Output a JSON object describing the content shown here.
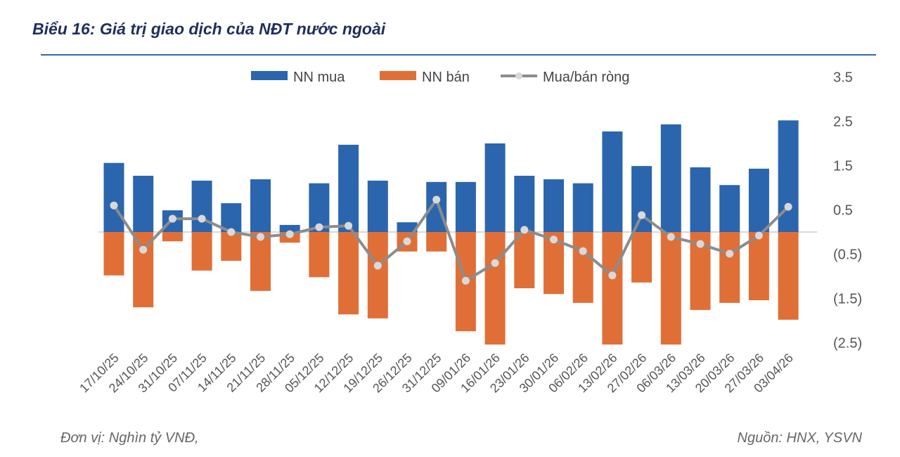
{
  "header": {
    "title": "Biểu 16: Giá trị giao dịch của NĐT nước ngoài"
  },
  "footer": {
    "unit": "Đơn vị: Nghìn tỷ VNĐ,",
    "source": "Nguồn: HNX, YSVN"
  },
  "chart_data": {
    "type": "bar",
    "title": "",
    "categories": [
      "17/10/25",
      "24/10/25",
      "31/10/25",
      "07/11/25",
      "14/11/25",
      "21/11/25",
      "28/11/25",
      "05/12/25",
      "12/12/25",
      "19/12/25",
      "26/12/25",
      "31/12/25",
      "09/01/26",
      "16/01/26",
      "23/01/26",
      "30/01/26",
      "06/02/26",
      "13/02/26",
      "27/02/26",
      "06/03/26",
      "13/03/26",
      "20/03/26",
      "27/03/26",
      "03/04/26"
    ],
    "series": [
      {
        "name": "NN mua",
        "type": "bar",
        "color": "#2b65ad",
        "values": [
          1.56,
          1.27,
          0.49,
          1.16,
          0.65,
          1.19,
          0.16,
          1.1,
          1.97,
          1.16,
          0.22,
          1.13,
          1.13,
          2.0,
          1.27,
          1.19,
          1.1,
          2.27,
          1.49,
          2.43,
          1.46,
          1.06,
          1.43,
          2.52
        ]
      },
      {
        "name": "NN bán",
        "type": "bar",
        "color": "#e06f37",
        "values": [
          -0.98,
          -1.7,
          -0.21,
          -0.87,
          -0.65,
          -1.33,
          -0.24,
          -1.02,
          -1.86,
          -1.95,
          -0.44,
          -0.44,
          -2.24,
          -2.54,
          -1.27,
          -1.4,
          -1.6,
          -2.54,
          -1.14,
          -2.54,
          -1.76,
          -1.6,
          -1.54,
          -1.98
        ]
      },
      {
        "name": "Mua/bán ròng",
        "type": "line",
        "color": "#8c8c8c",
        "marker_color": "#d9d9d9",
        "values": [
          0.6,
          -0.4,
          0.3,
          0.3,
          0.0,
          -0.11,
          -0.05,
          0.11,
          0.14,
          -0.76,
          -0.21,
          0.73,
          -1.1,
          -0.7,
          0.05,
          -0.17,
          -0.43,
          -0.98,
          0.38,
          -0.11,
          -0.27,
          -0.49,
          -0.08,
          0.57
        ]
      }
    ],
    "yticks": [
      "3.5",
      "2.5",
      "1.5",
      "0.5",
      "(0.5)",
      "(1.5)",
      "(2.5)"
    ],
    "ytick_values": [
      3.5,
      2.5,
      1.5,
      0.5,
      -0.5,
      -1.5,
      -2.5
    ],
    "ylim": [
      -2.5,
      3.5
    ],
    "y_axis_side": "right",
    "legend": "top",
    "grid": false
  }
}
